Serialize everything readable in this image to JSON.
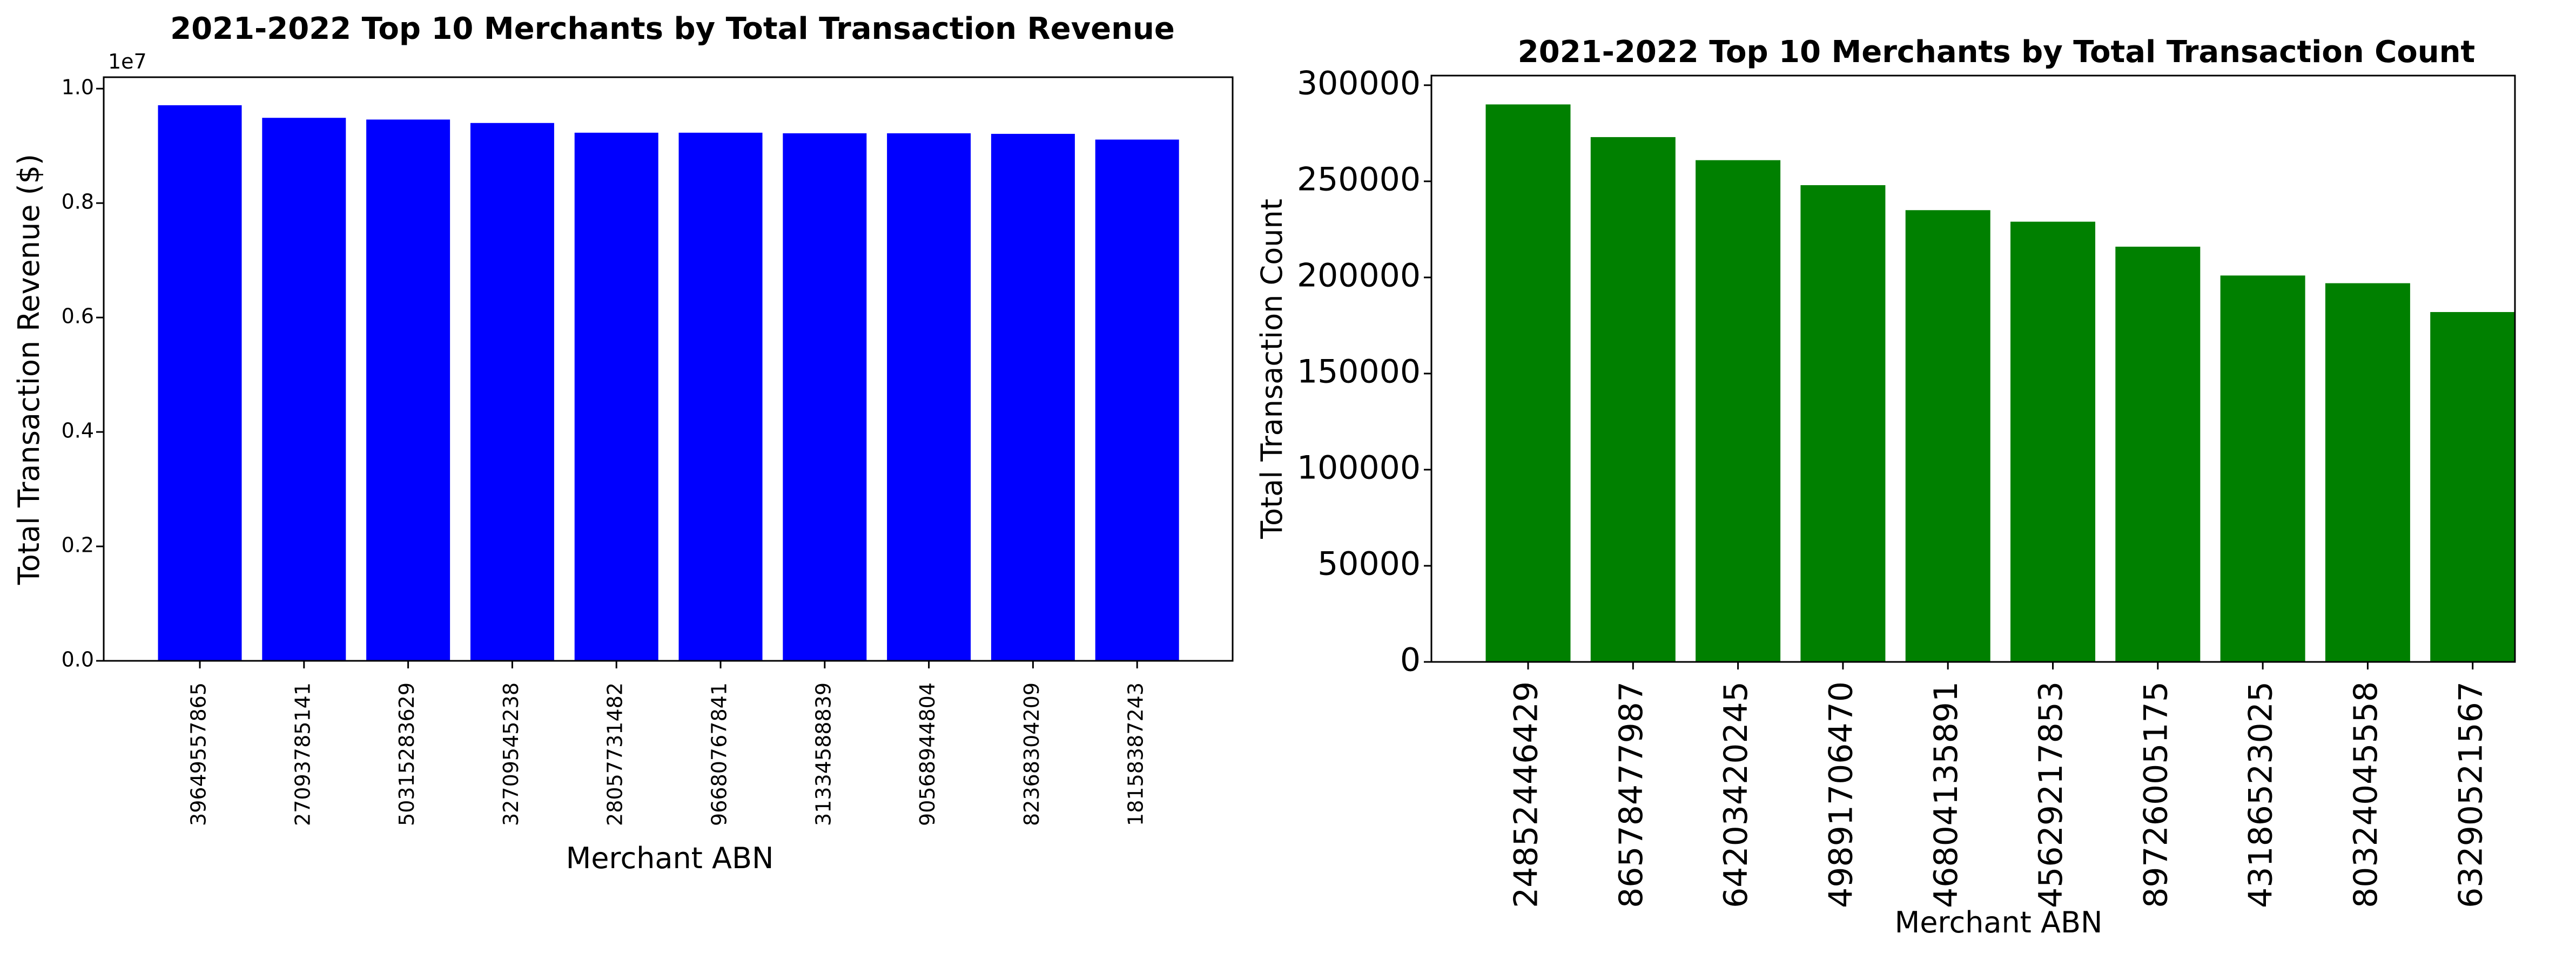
{
  "chart_data": [
    {
      "type": "bar",
      "title": "2021-2022 Top 10 Merchants by Total Transaction Revenue",
      "xlabel": "Merchant ABN",
      "ylabel": "Total Transaction Revenue ($)",
      "offset_label": "1e7",
      "color": "#0000ff",
      "ylim": [
        0,
        10200000
      ],
      "yticks": [
        {
          "value": 0,
          "label": "0.0"
        },
        {
          "value": 2000000,
          "label": "0.2"
        },
        {
          "value": 4000000,
          "label": "0.4"
        },
        {
          "value": 6000000,
          "label": "0.6"
        },
        {
          "value": 8000000,
          "label": "0.8"
        },
        {
          "value": 10000000,
          "label": "1.0"
        }
      ],
      "categories": [
        "39649557865",
        "27093785141",
        "50315283629",
        "32709545238",
        "28057731482",
        "96680767841",
        "31334588839",
        "90568944804",
        "82368304209",
        "18158387243"
      ],
      "values": [
        9710000,
        9490000,
        9460000,
        9400000,
        9230000,
        9230000,
        9220000,
        9220000,
        9210000,
        9110000
      ]
    },
    {
      "type": "bar",
      "title": "2021-2022 Top 10 Merchants by Total Transaction Count",
      "xlabel": "Merchant ABN",
      "ylabel": "Total Transaction Count",
      "color": "#008000",
      "ylim": [
        0,
        305000
      ],
      "yticks": [
        {
          "value": 0,
          "label": "0"
        },
        {
          "value": 50000,
          "label": "50000"
        },
        {
          "value": 100000,
          "label": "100000"
        },
        {
          "value": 150000,
          "label": "150000"
        },
        {
          "value": 200000,
          "label": "200000"
        },
        {
          "value": 250000,
          "label": "250000"
        },
        {
          "value": 300000,
          "label": "300000"
        }
      ],
      "categories": [
        "24852446429",
        "86578477987",
        "64203420245",
        "49891706470",
        "46804135891",
        "45629217853",
        "89726005175",
        "43186523025",
        "80324045558",
        "63290521567"
      ],
      "values": [
        290000,
        273000,
        261000,
        248000,
        235000,
        229000,
        216000,
        201000,
        197000,
        182000
      ]
    }
  ]
}
